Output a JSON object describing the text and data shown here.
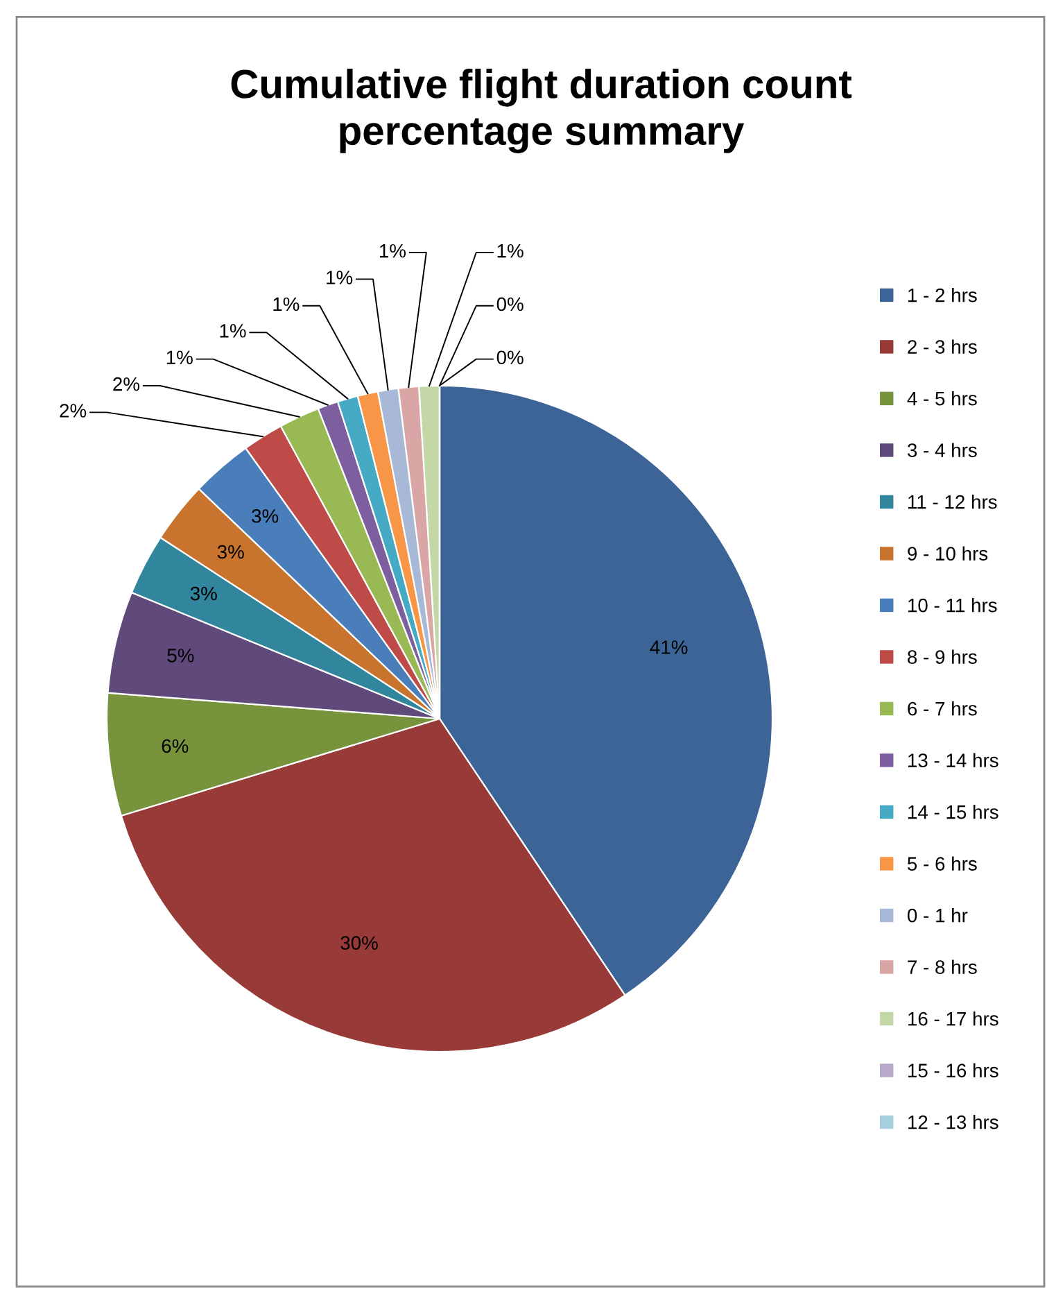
{
  "chart_data": {
    "type": "pie",
    "title": "Cumulative flight duration count\npercentage summary",
    "categories": [
      "1 - 2 hrs",
      "2 - 3 hrs",
      "4 - 5 hrs",
      "3 - 4 hrs",
      "11 - 12 hrs",
      "9 - 10 hrs",
      "10 - 11 hrs",
      "8 - 9 hrs",
      "6 - 7 hrs",
      "13 - 14 hrs",
      "14 - 15 hrs",
      "5 - 6 hrs",
      "0 - 1 hr",
      "7 - 8 hrs",
      "16 - 17 hrs",
      "15 - 16 hrs",
      "12 - 13 hrs"
    ],
    "values": [
      41,
      30,
      6,
      5,
      3,
      3,
      3,
      2,
      2,
      1,
      1,
      1,
      1,
      1,
      1,
      0,
      0
    ],
    "value_labels": [
      "41%",
      "30%",
      "6%",
      "5%",
      "3%",
      "3%",
      "3%",
      "2%",
      "2%",
      "1%",
      "1%",
      "1%",
      "1%",
      "1%",
      "1%",
      "0%",
      "0%"
    ],
    "colors": [
      "#3c6496",
      "#983b38",
      "#77933c",
      "#604a7b",
      "#31859c",
      "#c8732e",
      "#4a7ebb",
      "#be4b48",
      "#98b954",
      "#7d5fa0",
      "#46aac5",
      "#f79646",
      "#a7b9d6",
      "#d9a6a5",
      "#c4d8a7",
      "#b8a9ca",
      "#a5cfdc"
    ],
    "legend": "right"
  }
}
